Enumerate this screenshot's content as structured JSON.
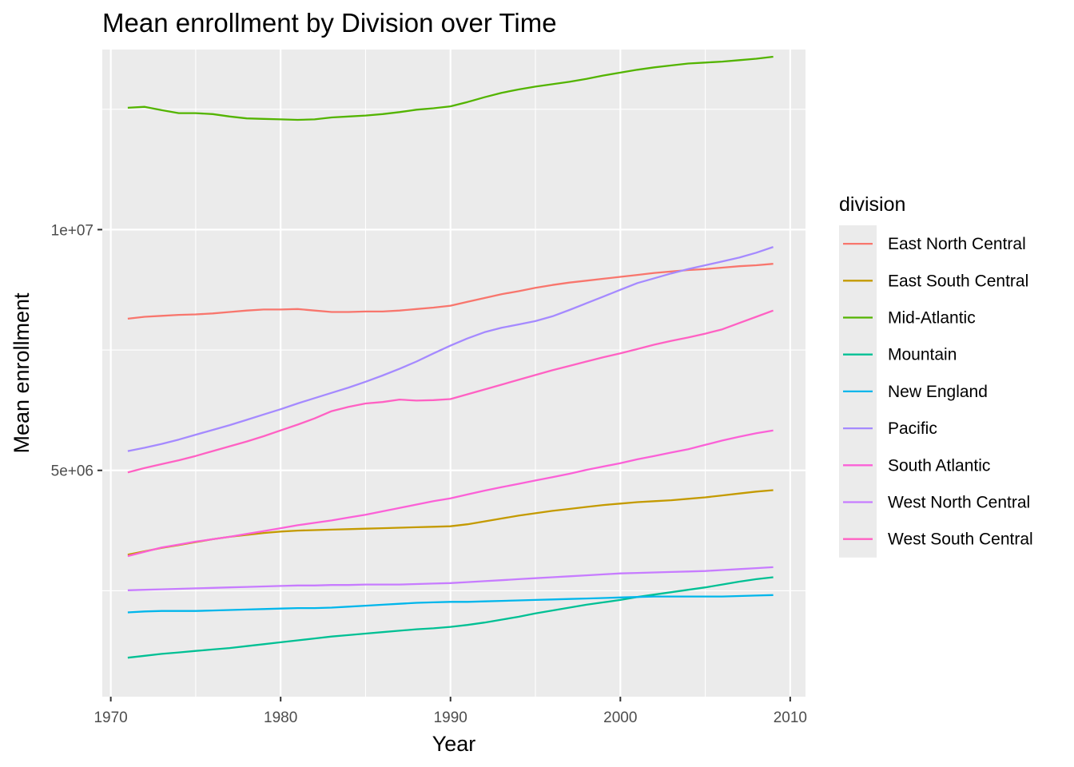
{
  "chart_data": {
    "type": "line",
    "title": "Mean enrollment by Division over Time",
    "xlabel": "Year",
    "ylabel": "Mean enrollment",
    "xlim": [
      1969.5,
      2010.9
    ],
    "ylim": [
      300000,
      13740000
    ],
    "x_ticks": [
      1970,
      1980,
      1990,
      2000,
      2010
    ],
    "x_tick_labels": [
      "1970",
      "1980",
      "1990",
      "2000",
      "2010"
    ],
    "y_ticks": [
      5000000,
      10000000
    ],
    "y_tick_labels": [
      "5e+06",
      "1e+07"
    ],
    "y_minor_ticks": [
      2500000,
      7500000,
      12500000
    ],
    "grid": true,
    "legend": {
      "title": "division",
      "placement": "right"
    },
    "x": [
      1971,
      1972,
      1973,
      1974,
      1975,
      1976,
      1977,
      1978,
      1979,
      1980,
      1981,
      1982,
      1983,
      1984,
      1985,
      1986,
      1987,
      1988,
      1989,
      1990,
      1991,
      1992,
      1993,
      1994,
      1995,
      1996,
      1997,
      1998,
      1999,
      2000,
      2001,
      2002,
      2003,
      2004,
      2005,
      2006,
      2007,
      2008,
      2009
    ],
    "series": [
      {
        "name": "East North Central",
        "color": "#F8766D",
        "values": [
          8150000,
          8190000,
          8210000,
          8230000,
          8240000,
          8260000,
          8290000,
          8320000,
          8340000,
          8340000,
          8350000,
          8320000,
          8290000,
          8290000,
          8300000,
          8300000,
          8320000,
          8350000,
          8380000,
          8420000,
          8500000,
          8580000,
          8660000,
          8720000,
          8790000,
          8850000,
          8900000,
          8940000,
          8980000,
          9020000,
          9060000,
          9100000,
          9130000,
          9160000,
          9180000,
          9210000,
          9240000,
          9260000,
          9290000
        ]
      },
      {
        "name": "East South Central",
        "color": "#C49A00",
        "values": [
          3250000,
          3320000,
          3390000,
          3450000,
          3510000,
          3570000,
          3620000,
          3660000,
          3700000,
          3730000,
          3750000,
          3760000,
          3770000,
          3780000,
          3790000,
          3800000,
          3810000,
          3820000,
          3830000,
          3840000,
          3880000,
          3940000,
          4000000,
          4060000,
          4110000,
          4160000,
          4200000,
          4240000,
          4280000,
          4310000,
          4340000,
          4360000,
          4380000,
          4410000,
          4440000,
          4480000,
          4520000,
          4560000,
          4590000
        ]
      },
      {
        "name": "Mid-Atlantic",
        "color": "#53B400",
        "values": [
          12530000,
          12550000,
          12480000,
          12420000,
          12420000,
          12400000,
          12350000,
          12310000,
          12300000,
          12290000,
          12280000,
          12290000,
          12330000,
          12350000,
          12370000,
          12400000,
          12440000,
          12490000,
          12520000,
          12560000,
          12650000,
          12750000,
          12840000,
          12910000,
          12970000,
          13020000,
          13070000,
          13130000,
          13200000,
          13260000,
          13320000,
          13370000,
          13410000,
          13450000,
          13470000,
          13490000,
          13520000,
          13550000,
          13590000
        ]
      },
      {
        "name": "Mountain",
        "color": "#00C094",
        "values": [
          1110000,
          1150000,
          1190000,
          1220000,
          1250000,
          1280000,
          1310000,
          1350000,
          1390000,
          1430000,
          1470000,
          1510000,
          1550000,
          1580000,
          1610000,
          1640000,
          1670000,
          1700000,
          1720000,
          1750000,
          1790000,
          1840000,
          1900000,
          1960000,
          2030000,
          2090000,
          2150000,
          2210000,
          2260000,
          2310000,
          2370000,
          2420000,
          2470000,
          2520000,
          2570000,
          2630000,
          2690000,
          2740000,
          2780000
        ]
      },
      {
        "name": "New England",
        "color": "#00B6EB",
        "values": [
          2050000,
          2070000,
          2080000,
          2080000,
          2080000,
          2090000,
          2100000,
          2110000,
          2120000,
          2130000,
          2140000,
          2140000,
          2150000,
          2170000,
          2190000,
          2210000,
          2230000,
          2250000,
          2260000,
          2270000,
          2270000,
          2280000,
          2290000,
          2300000,
          2310000,
          2320000,
          2330000,
          2340000,
          2350000,
          2360000,
          2370000,
          2380000,
          2380000,
          2380000,
          2380000,
          2380000,
          2390000,
          2400000,
          2410000
        ]
      },
      {
        "name": "Pacific",
        "color": "#A58AFF",
        "values": [
          5400000,
          5470000,
          5550000,
          5640000,
          5740000,
          5840000,
          5940000,
          6050000,
          6160000,
          6270000,
          6390000,
          6500000,
          6610000,
          6720000,
          6840000,
          6970000,
          7110000,
          7260000,
          7430000,
          7590000,
          7740000,
          7870000,
          7960000,
          8030000,
          8100000,
          8200000,
          8330000,
          8470000,
          8610000,
          8750000,
          8890000,
          8990000,
          9090000,
          9180000,
          9260000,
          9340000,
          9420000,
          9520000,
          9640000
        ]
      },
      {
        "name": "South Atlantic",
        "color": "#FB61D7",
        "values": [
          3220000,
          3310000,
          3400000,
          3460000,
          3520000,
          3570000,
          3620000,
          3680000,
          3740000,
          3800000,
          3860000,
          3910000,
          3960000,
          4020000,
          4080000,
          4150000,
          4220000,
          4290000,
          4360000,
          4420000,
          4500000,
          4580000,
          4650000,
          4720000,
          4790000,
          4860000,
          4930000,
          5010000,
          5080000,
          5150000,
          5230000,
          5300000,
          5370000,
          5440000,
          5530000,
          5620000,
          5700000,
          5770000,
          5830000
        ]
      },
      {
        "name": "West North Central",
        "color": "#C77CFF",
        "values": [
          2510000,
          2520000,
          2530000,
          2540000,
          2550000,
          2560000,
          2570000,
          2580000,
          2590000,
          2600000,
          2610000,
          2610000,
          2620000,
          2620000,
          2630000,
          2630000,
          2630000,
          2640000,
          2650000,
          2660000,
          2680000,
          2700000,
          2720000,
          2740000,
          2760000,
          2780000,
          2800000,
          2820000,
          2840000,
          2860000,
          2870000,
          2880000,
          2890000,
          2900000,
          2910000,
          2930000,
          2950000,
          2970000,
          2990000
        ]
      },
      {
        "name": "West South Central",
        "color": "#FF61C3",
        "values": [
          4960000,
          5050000,
          5130000,
          5210000,
          5300000,
          5400000,
          5500000,
          5600000,
          5710000,
          5830000,
          5950000,
          6080000,
          6230000,
          6320000,
          6390000,
          6420000,
          6470000,
          6450000,
          6460000,
          6480000,
          6580000,
          6680000,
          6780000,
          6880000,
          6980000,
          7080000,
          7170000,
          7260000,
          7350000,
          7430000,
          7520000,
          7610000,
          7690000,
          7760000,
          7840000,
          7930000,
          8060000,
          8190000,
          8320000
        ]
      }
    ]
  }
}
